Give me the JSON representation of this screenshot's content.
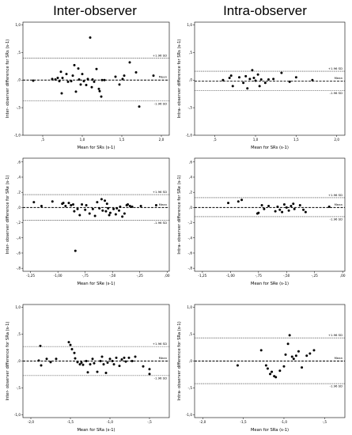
{
  "headers": {
    "left": "Inter-observer",
    "right": "Intra-observer"
  },
  "chart_data": [
    {
      "type": "scatter",
      "title": "",
      "xlabel": "Mean for SRs (s-1)",
      "ylabel": "Inter- observer difference for SRs (s-1)",
      "xlim": [
        0.25,
        2.1
      ],
      "ylim": [
        -1.0,
        1.05
      ],
      "xticks": [
        0.5,
        1.0,
        1.5,
        2.0
      ],
      "xtick_labels": [
        ",5",
        "1,0",
        "1,5",
        "2,0"
      ],
      "yticks": [
        -1.0,
        -0.5,
        0.0,
        0.5,
        1.0
      ],
      "ytick_labels": [
        "-1,0",
        "-,5",
        ",0",
        ",5",
        "1,0"
      ],
      "reference_lines": [
        {
          "label": "+1.96 SD",
          "y": 0.4,
          "style": "dotted"
        },
        {
          "label": "Mean",
          "y": 0.0,
          "style": "dashed"
        },
        {
          "label": "-1.96 SD",
          "y": -0.38,
          "style": "dotted"
        }
      ],
      "points": [
        [
          0.38,
          -0.01
        ],
        [
          0.62,
          0.02
        ],
        [
          0.66,
          0.01
        ],
        [
          0.69,
          0.04
        ],
        [
          0.71,
          -0.02
        ],
        [
          0.73,
          0.15
        ],
        [
          0.74,
          -0.24
        ],
        [
          0.75,
          0.04
        ],
        [
          0.8,
          0.11
        ],
        [
          0.82,
          -0.03
        ],
        [
          0.86,
          -0.02
        ],
        [
          0.88,
          0.08
        ],
        [
          0.9,
          0.27
        ],
        [
          0.92,
          -0.21
        ],
        [
          0.95,
          0.21
        ],
        [
          0.96,
          0.01
        ],
        [
          0.98,
          -0.08
        ],
        [
          1.0,
          0.11
        ],
        [
          1.02,
          -0.02
        ],
        [
          1.05,
          -0.09
        ],
        [
          1.07,
          0.02
        ],
        [
          1.1,
          0.77
        ],
        [
          1.12,
          -0.13
        ],
        [
          1.13,
          0.01
        ],
        [
          1.15,
          -0.03
        ],
        [
          1.18,
          0.2
        ],
        [
          1.21,
          -0.16
        ],
        [
          1.22,
          -0.2
        ],
        [
          1.24,
          -0.3
        ],
        [
          1.25,
          0.0
        ],
        [
          1.28,
          0.0
        ],
        [
          1.42,
          0.06
        ],
        [
          1.47,
          -0.08
        ],
        [
          1.51,
          0.02
        ],
        [
          1.53,
          0.08
        ],
        [
          1.6,
          0.32
        ],
        [
          1.68,
          0.14
        ],
        [
          1.72,
          -0.48
        ],
        [
          1.9,
          0.08
        ]
      ]
    },
    {
      "type": "scatter",
      "title": "",
      "xlabel": "Mean for SRs (s-1)",
      "ylabel": "Intra- observer difference for SRs (s-1)",
      "xlim": [
        0.25,
        2.1
      ],
      "ylim": [
        -1.0,
        1.05
      ],
      "xticks": [
        0.5,
        1.0,
        1.5,
        2.0
      ],
      "xtick_labels": [
        ",5",
        "1,0",
        "1,5",
        "2,0"
      ],
      "yticks": [
        -1.0,
        -0.5,
        0.0,
        0.5,
        1.0
      ],
      "ytick_labels": [
        "-1,0",
        "-,5",
        ",0",
        ",5",
        "1,0"
      ],
      "reference_lines": [
        {
          "label": "+1.96 SD",
          "y": 0.16,
          "style": "dotted"
        },
        {
          "label": "Mean",
          "y": -0.02,
          "style": "dashed"
        },
        {
          "label": "-1.96 SD",
          "y": -0.19,
          "style": "dotted"
        }
      ],
      "points": [
        [
          0.6,
          0.0
        ],
        [
          0.68,
          0.04
        ],
        [
          0.7,
          0.08
        ],
        [
          0.72,
          -0.11
        ],
        [
          0.8,
          0.05
        ],
        [
          0.85,
          -0.05
        ],
        [
          0.88,
          0.07
        ],
        [
          0.9,
          -0.15
        ],
        [
          0.93,
          0.02
        ],
        [
          0.96,
          0.18
        ],
        [
          0.98,
          0.04
        ],
        [
          1.0,
          -0.01
        ],
        [
          1.03,
          0.1
        ],
        [
          1.05,
          -0.11
        ],
        [
          1.07,
          0.01
        ],
        [
          1.12,
          -0.05
        ],
        [
          1.16,
          0.01
        ],
        [
          1.22,
          0.02
        ],
        [
          1.32,
          0.13
        ],
        [
          1.42,
          -0.03
        ],
        [
          1.5,
          0.05
        ],
        [
          1.7,
          0.0
        ]
      ]
    },
    {
      "type": "scatter",
      "title": "",
      "xlabel": "Mean for SRe (s-1)",
      "ylabel": "Inter- observer difference for SRe (s-1)",
      "xlim": [
        -1.32,
        0.02
      ],
      "ylim": [
        -0.84,
        0.65
      ],
      "xticks": [
        -1.25,
        -1.0,
        -0.75,
        -0.5,
        -0.25,
        0.0
      ],
      "xtick_labels": [
        "-1,25",
        "-1,00",
        "-,75",
        "-,50",
        "-,25",
        ",00"
      ],
      "yticks": [
        -0.8,
        -0.6,
        -0.4,
        -0.2,
        0.0,
        0.2,
        0.4,
        0.6
      ],
      "ytick_labels": [
        "-,8",
        "-,6",
        "-,4",
        "-,2",
        ",0",
        ",2",
        ",4",
        ",6"
      ],
      "reference_lines": [
        {
          "label": "+1.96 SD",
          "y": 0.17,
          "style": "dotted"
        },
        {
          "label": "Mean",
          "y": 0.0,
          "style": "dashed"
        },
        {
          "label": "-1.96 SD",
          "y": -0.17,
          "style": "dotted"
        }
      ],
      "points": [
        [
          -1.22,
          0.07
        ],
        [
          -1.15,
          0.02
        ],
        [
          -1.05,
          0.08
        ],
        [
          -0.96,
          0.05
        ],
        [
          -0.95,
          0.06
        ],
        [
          -0.93,
          0.02
        ],
        [
          -0.9,
          0.06
        ],
        [
          -0.88,
          0.03
        ],
        [
          -0.86,
          0.04
        ],
        [
          -0.85,
          -0.05
        ],
        [
          -0.84,
          -0.57
        ],
        [
          -0.82,
          -0.02
        ],
        [
          -0.8,
          -0.1
        ],
        [
          -0.78,
          0.04
        ],
        [
          -0.75,
          -0.03
        ],
        [
          -0.74,
          0.03
        ],
        [
          -0.71,
          -0.08
        ],
        [
          -0.68,
          -0.02
        ],
        [
          -0.66,
          -0.11
        ],
        [
          -0.64,
          0.07
        ],
        [
          -0.62,
          -0.01
        ],
        [
          -0.6,
          0.11
        ],
        [
          -0.59,
          -0.04
        ],
        [
          -0.57,
          0.09
        ],
        [
          -0.56,
          -0.05
        ],
        [
          -0.55,
          0.05
        ],
        [
          -0.54,
          -0.01
        ],
        [
          -0.53,
          -0.1
        ],
        [
          -0.52,
          -0.07
        ],
        [
          -0.49,
          -0.02
        ],
        [
          -0.47,
          -0.09
        ],
        [
          -0.46,
          -0.01
        ],
        [
          -0.44,
          -0.04
        ],
        [
          -0.43,
          0.01
        ],
        [
          -0.41,
          -0.12
        ],
        [
          -0.39,
          -0.08
        ],
        [
          -0.37,
          0.03
        ],
        [
          -0.36,
          0.04
        ],
        [
          -0.34,
          0.02
        ],
        [
          -0.32,
          0.01
        ],
        [
          -0.24,
          0.02
        ],
        [
          -0.1,
          0.03
        ]
      ]
    },
    {
      "type": "scatter",
      "title": "",
      "xlabel": "Mean for SRe (s-1)",
      "ylabel": "Intra- observer difference for SRe (s-1)",
      "xlim": [
        -1.32,
        0.02
      ],
      "ylim": [
        -0.84,
        0.65
      ],
      "xticks": [
        -1.25,
        -1.0,
        -0.75,
        -0.5,
        -0.25,
        0.0
      ],
      "xtick_labels": [
        "-1,25",
        "-1,00",
        "-,75",
        "-,50",
        "-,25",
        ",00"
      ],
      "yticks": [
        -0.8,
        -0.6,
        -0.4,
        -0.2,
        0.0,
        0.2,
        0.4,
        0.6
      ],
      "ytick_labels": [
        "-,8",
        "-,6",
        "-,4",
        "-,2",
        ",0",
        ",2",
        ",4",
        ",6"
      ],
      "reference_lines": [
        {
          "label": "+1.96 SD",
          "y": 0.13,
          "style": "dotted"
        },
        {
          "label": "Mean",
          "y": 0.0,
          "style": "dashed"
        },
        {
          "label": "-1.96 SD",
          "y": -0.12,
          "style": "dotted"
        }
      ],
      "points": [
        [
          -1.02,
          0.06
        ],
        [
          -0.93,
          0.08
        ],
        [
          -0.9,
          0.1
        ],
        [
          -0.76,
          -0.08
        ],
        [
          -0.75,
          -0.07
        ],
        [
          -0.72,
          0.03
        ],
        [
          -0.7,
          -0.02
        ],
        [
          -0.66,
          0.02
        ],
        [
          -0.6,
          -0.05
        ],
        [
          -0.58,
          0.01
        ],
        [
          -0.56,
          -0.03
        ],
        [
          -0.54,
          -0.06
        ],
        [
          -0.52,
          0.04
        ],
        [
          -0.5,
          0.0
        ],
        [
          -0.48,
          -0.04
        ],
        [
          -0.46,
          0.02
        ],
        [
          -0.44,
          0.05
        ],
        [
          -0.43,
          -0.02
        ],
        [
          -0.38,
          0.03
        ],
        [
          -0.35,
          -0.03
        ],
        [
          -0.33,
          -0.06
        ],
        [
          -0.12,
          0.01
        ]
      ]
    },
    {
      "type": "scatter",
      "title": "",
      "xlabel": "Mean for SRa (s-1)",
      "ylabel": "Inter- observer difference for SRa (s-1)",
      "xlim": [
        -2.1,
        -0.25
      ],
      "ylim": [
        -1.05,
        1.05
      ],
      "xticks": [
        -2.0,
        -1.5,
        -1.0,
        -0.5
      ],
      "xtick_labels": [
        "-2,0",
        "-1,5",
        "-1,0",
        "-,5"
      ],
      "yticks": [
        -1.0,
        -0.5,
        0.0,
        0.5,
        1.0
      ],
      "ytick_labels": [
        "-1,0",
        "-,5",
        ",0",
        ",5",
        "1,0"
      ],
      "reference_lines": [
        {
          "label": "+1.96 SD",
          "y": 0.27,
          "style": "dotted"
        },
        {
          "label": "Mean",
          "y": 0.0,
          "style": "dashed"
        },
        {
          "label": "-1.96 SD",
          "y": -0.27,
          "style": "dotted"
        }
      ],
      "points": [
        [
          -1.88,
          0.28
        ],
        [
          -1.9,
          0.01
        ],
        [
          -1.87,
          -0.08
        ],
        [
          -1.8,
          0.04
        ],
        [
          -1.75,
          -0.02
        ],
        [
          -1.68,
          0.04
        ],
        [
          -1.52,
          0.35
        ],
        [
          -1.5,
          0.3
        ],
        [
          -1.48,
          0.22
        ],
        [
          -1.45,
          0.15
        ],
        [
          -1.44,
          0.05
        ],
        [
          -1.41,
          -0.02
        ],
        [
          -1.38,
          -0.06
        ],
        [
          -1.36,
          -0.03
        ],
        [
          -1.34,
          -0.07
        ],
        [
          -1.3,
          0.0
        ],
        [
          -1.28,
          -0.21
        ],
        [
          -1.25,
          -0.06
        ],
        [
          -1.22,
          0.04
        ],
        [
          -1.2,
          -0.04
        ],
        [
          -1.16,
          -0.2
        ],
        [
          -1.12,
          0.0
        ],
        [
          -1.1,
          0.08
        ],
        [
          -1.08,
          -0.06
        ],
        [
          -1.05,
          -0.22
        ],
        [
          -1.03,
          -0.03
        ],
        [
          -1.0,
          0.04
        ],
        [
          -0.97,
          0.0
        ],
        [
          -0.95,
          -0.06
        ],
        [
          -0.92,
          0.06
        ],
        [
          -0.88,
          -0.09
        ],
        [
          -0.85,
          0.03
        ],
        [
          -0.82,
          0.06
        ],
        [
          -0.8,
          -0.01
        ],
        [
          -0.76,
          0.06
        ],
        [
          -0.72,
          0.0
        ],
        [
          -0.68,
          0.08
        ],
        [
          -0.58,
          -0.1
        ],
        [
          -0.5,
          -0.15
        ],
        [
          -0.5,
          -0.24
        ]
      ]
    },
    {
      "type": "scatter",
      "title": "",
      "xlabel": "Mean for SRa (s-1)",
      "ylabel": "Intra- observer difference for SRa (s-1)",
      "xlim": [
        -2.1,
        -0.25
      ],
      "ylim": [
        -1.05,
        1.05
      ],
      "xticks": [
        -2.0,
        -1.5,
        -1.0,
        -0.5
      ],
      "xtick_labels": [
        "-2,0",
        "-1,5",
        "-1,0",
        "-,5"
      ],
      "yticks": [
        -1.0,
        -0.5,
        0.0,
        0.5,
        1.0
      ],
      "ytick_labels": [
        "-1,0",
        "-,5",
        ",0",
        ",5",
        "1,0"
      ],
      "reference_lines": [
        {
          "label": "+1.96 SD",
          "y": 0.43,
          "style": "dotted"
        },
        {
          "label": "Mean",
          "y": 0.0,
          "style": "dashed"
        },
        {
          "label": "-1.96 SD",
          "y": -0.42,
          "style": "dotted"
        }
      ],
      "points": [
        [
          -1.57,
          -0.08
        ],
        [
          -1.28,
          0.2
        ],
        [
          -1.22,
          -0.08
        ],
        [
          -1.2,
          -0.14
        ],
        [
          -1.17,
          -0.24
        ],
        [
          -1.15,
          -0.2
        ],
        [
          -1.12,
          -0.28
        ],
        [
          -1.1,
          -0.3
        ],
        [
          -1.05,
          -0.18
        ],
        [
          -1.0,
          -0.1
        ],
        [
          -0.98,
          0.12
        ],
        [
          -0.95,
          0.32
        ],
        [
          -0.93,
          0.48
        ],
        [
          -0.9,
          0.08
        ],
        [
          -0.88,
          0.04
        ],
        [
          -0.85,
          0.1
        ],
        [
          -0.82,
          0.18
        ],
        [
          -0.78,
          -0.12
        ],
        [
          -0.72,
          0.1
        ],
        [
          -0.68,
          0.14
        ],
        [
          -0.63,
          0.2
        ]
      ]
    }
  ]
}
